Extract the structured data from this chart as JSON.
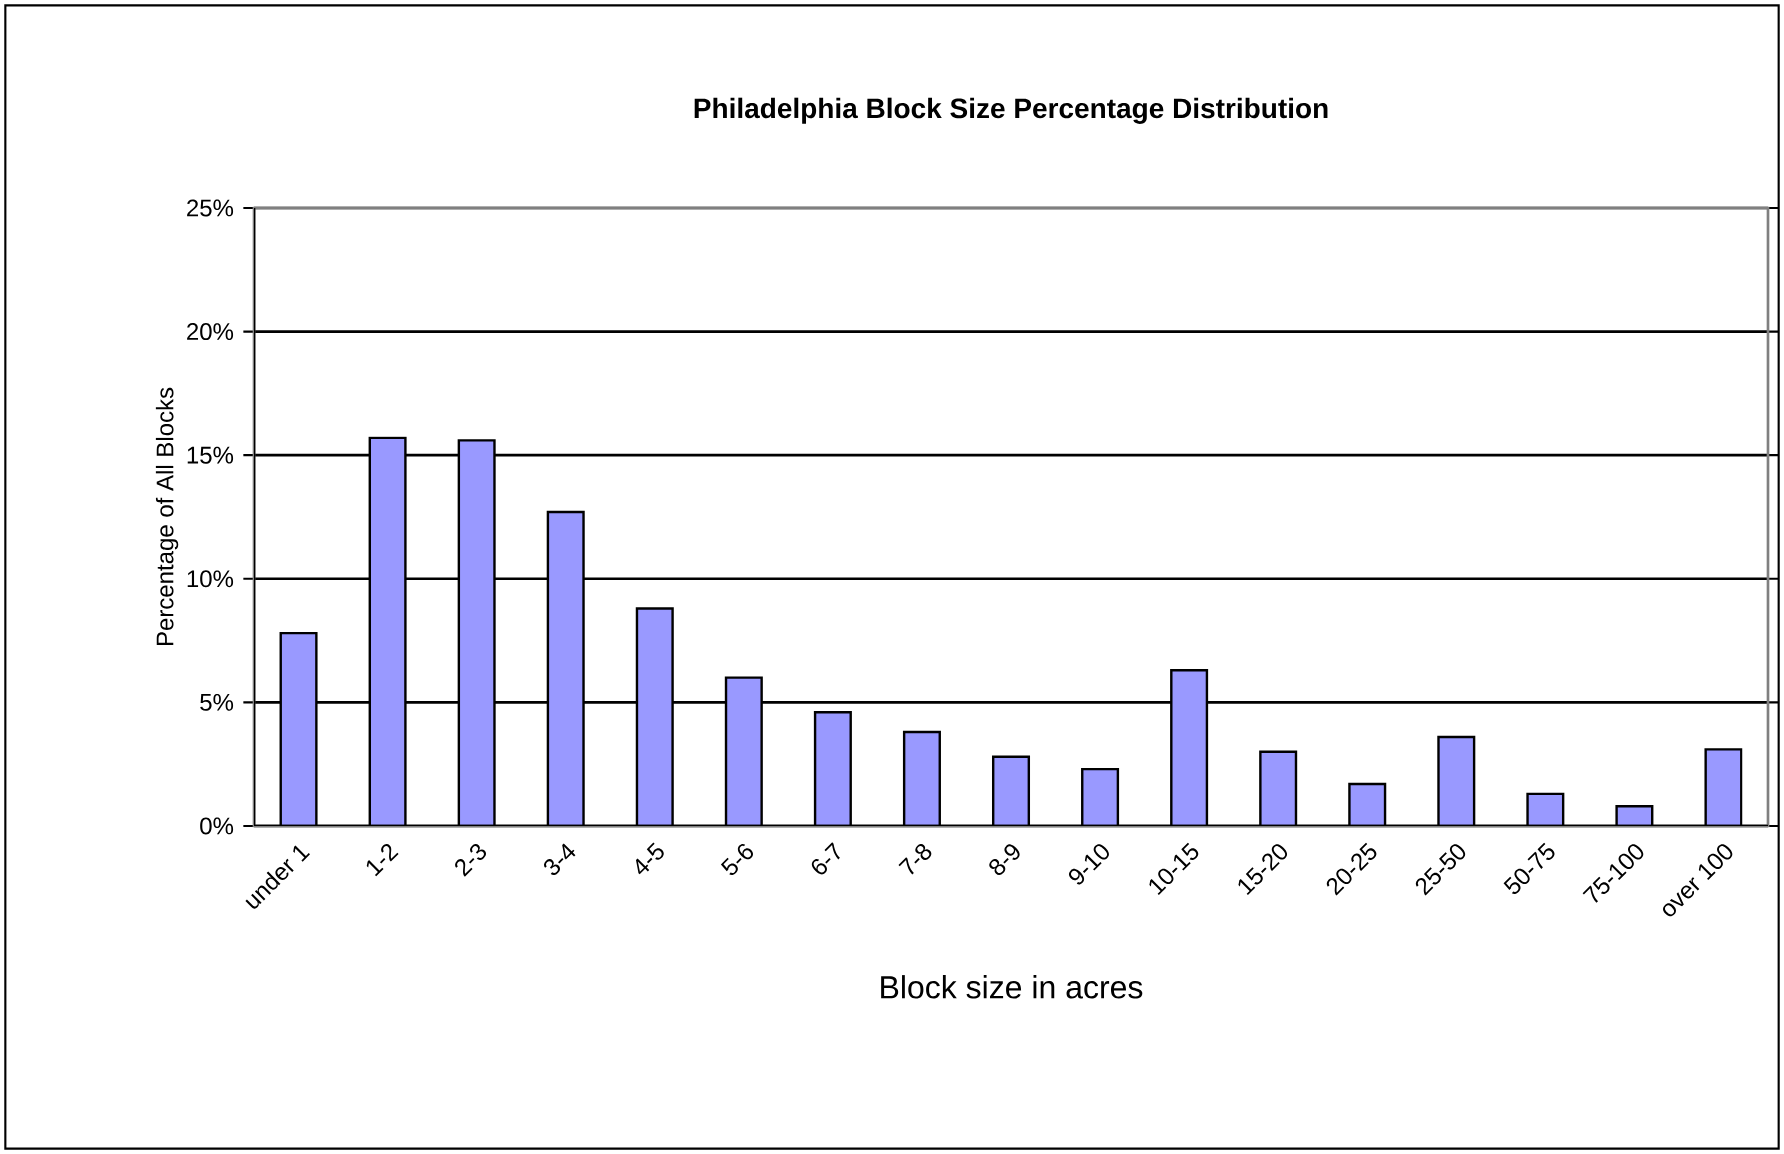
{
  "chart_data": {
    "type": "bar",
    "title": "Philadelphia Block Size Percentage Distribution",
    "xlabel": "Block size in acres",
    "ylabel": "Percentage of All Blocks",
    "categories": [
      "under 1",
      "1-2",
      "2-3",
      "3-4",
      "4-5",
      "5-6",
      "6-7",
      "7-8",
      "8-9",
      "9-10",
      "10-15",
      "15-20",
      "20-25",
      "25-50",
      "50-75",
      "75-100",
      "over 100"
    ],
    "values": [
      7.8,
      15.7,
      15.6,
      12.7,
      8.8,
      6.0,
      4.6,
      3.8,
      2.8,
      2.3,
      6.3,
      3.0,
      1.7,
      3.6,
      1.3,
      0.8,
      3.1
    ],
    "color": "#9999ff",
    "ylim": [
      0,
      25
    ],
    "yticks": [
      {
        "value": 0,
        "label": "0%"
      },
      {
        "value": 5,
        "label": "5%"
      },
      {
        "value": 10,
        "label": "10%"
      },
      {
        "value": 15,
        "label": "15%"
      },
      {
        "value": 20,
        "label": "20%"
      },
      {
        "value": 25,
        "label": "25%"
      }
    ],
    "grid": "y"
  }
}
